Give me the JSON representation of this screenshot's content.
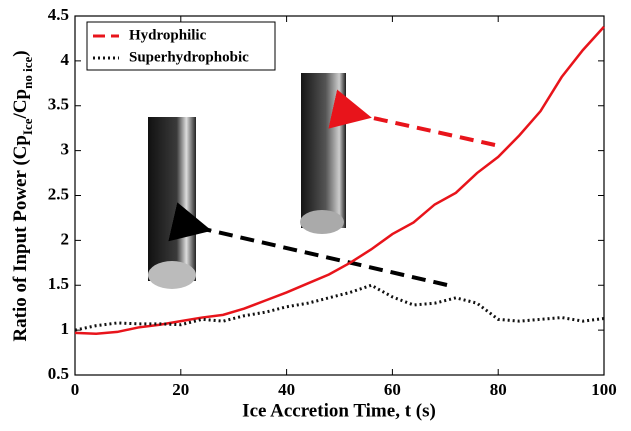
{
  "chart_data": {
    "type": "line",
    "x_label": "Ice Accretion Time, t (s)",
    "y_label_parts": [
      "Ratio of Input Power (Cp",
      "Ice",
      "/Cp",
      "no ice",
      ")"
    ],
    "x": [
      0,
      4,
      8,
      12,
      16,
      20,
      24,
      28,
      32,
      36,
      40,
      44,
      48,
      52,
      56,
      60,
      64,
      68,
      72,
      76,
      80,
      84,
      88,
      92,
      96,
      100
    ],
    "series": [
      {
        "name": "Hydrophilic",
        "color": "#e8141b",
        "style": "solid",
        "values": [
          0.97,
          0.96,
          0.98,
          1.03,
          1.06,
          1.1,
          1.14,
          1.17,
          1.24,
          1.33,
          1.42,
          1.52,
          1.62,
          1.75,
          1.9,
          2.07,
          2.2,
          2.4,
          2.53,
          2.75,
          2.93,
          3.17,
          3.44,
          3.82,
          4.12,
          4.38
        ]
      },
      {
        "name": "Superhydrophobic",
        "color": "#111111",
        "style": "dotted",
        "values": [
          1.0,
          1.05,
          1.08,
          1.07,
          1.07,
          1.06,
          1.12,
          1.1,
          1.16,
          1.2,
          1.26,
          1.3,
          1.36,
          1.42,
          1.5,
          1.37,
          1.28,
          1.3,
          1.36,
          1.3,
          1.12,
          1.1,
          1.12,
          1.14,
          1.1,
          1.13
        ]
      }
    ],
    "xlim": [
      0,
      100
    ],
    "xticks": [
      0,
      20,
      40,
      60,
      80,
      100
    ],
    "ylim": [
      0.5,
      4.5
    ],
    "yticks": [
      0.5,
      1,
      1.5,
      2,
      2.5,
      3,
      3.5,
      4,
      4.5
    ],
    "legend": "top-left",
    "grid": false
  }
}
